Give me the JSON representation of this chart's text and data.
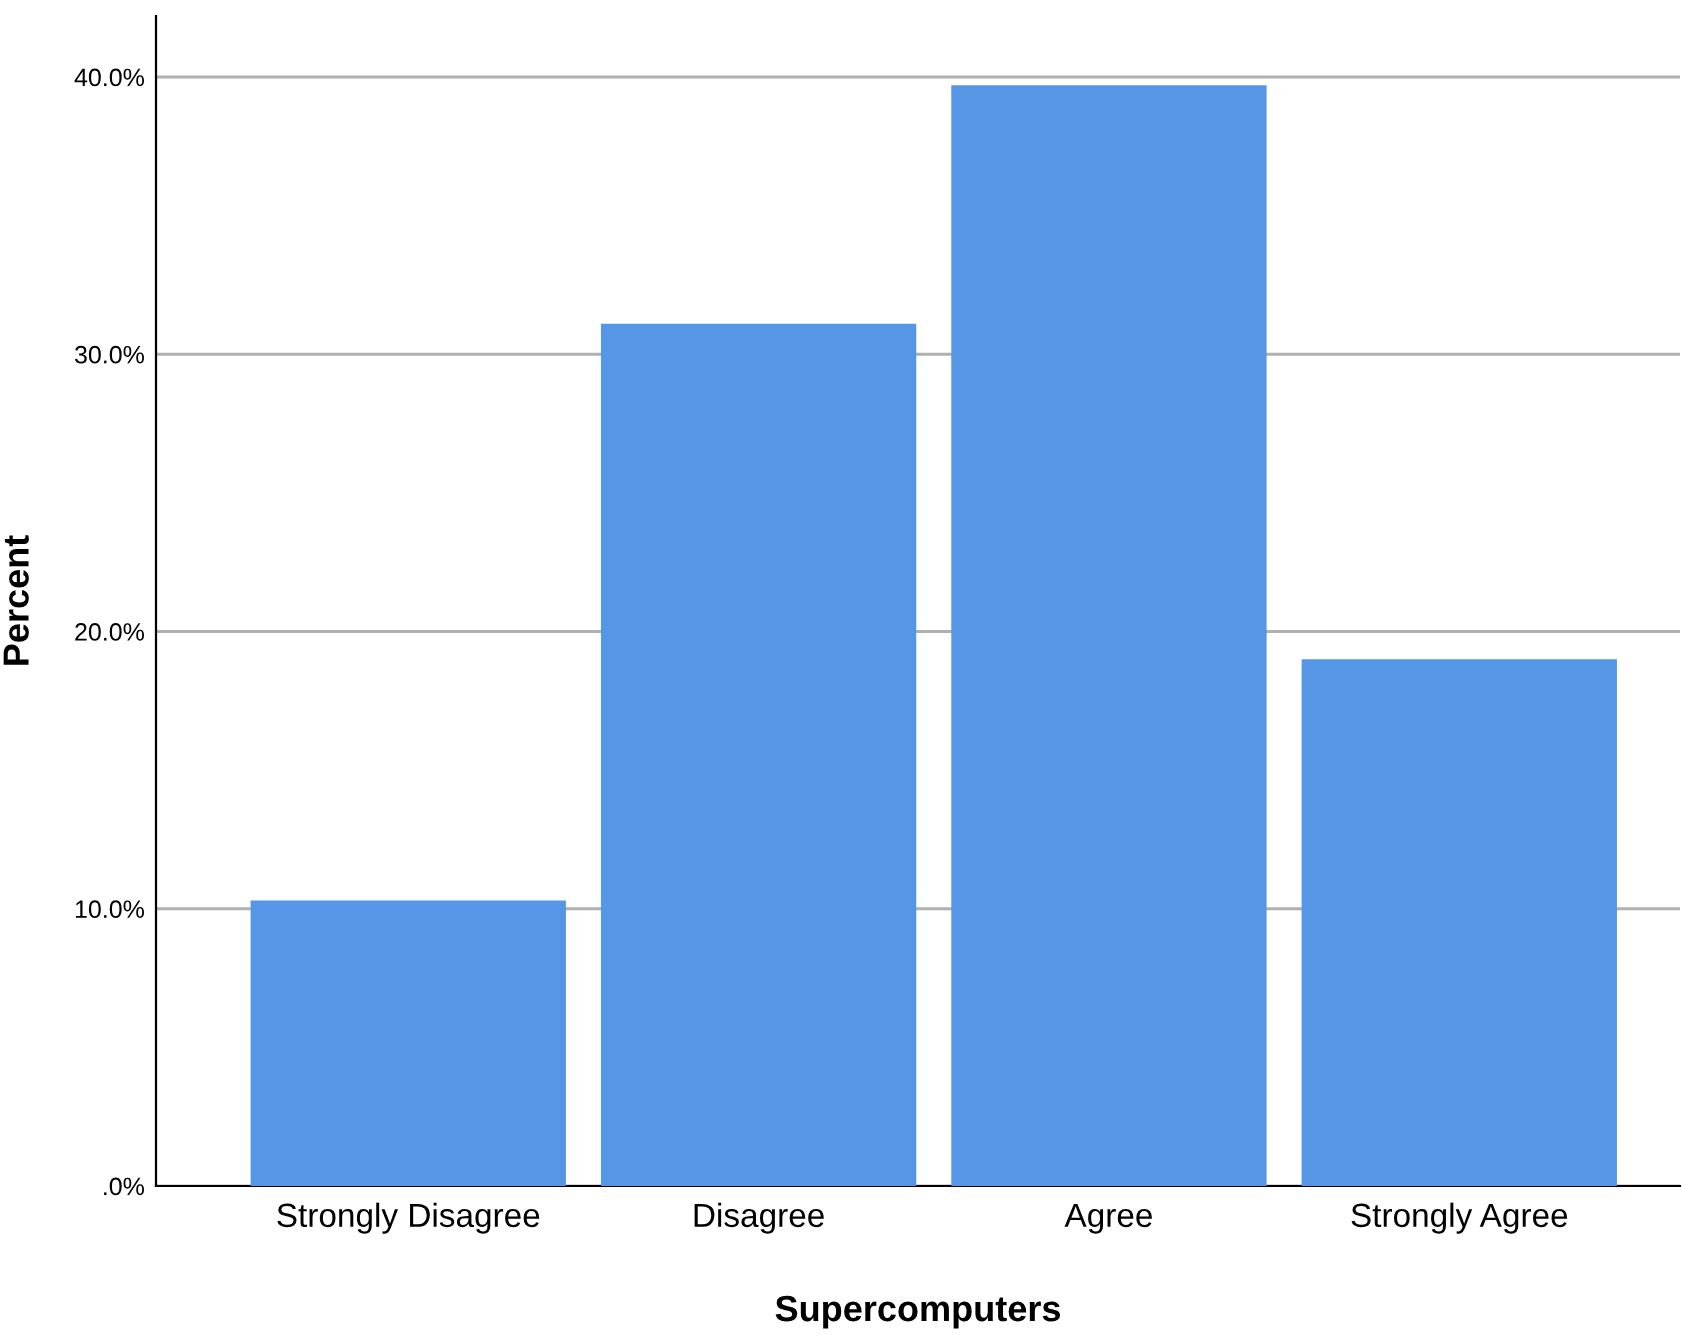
{
  "chart_data": {
    "type": "bar",
    "xlabel": "Supercomputers",
    "ylabel": "Percent",
    "categories": [
      "Strongly Disagree",
      "Disagree",
      "Agree",
      "Strongly Agree"
    ],
    "values": [
      10.3,
      31.1,
      39.7,
      19.0
    ],
    "color": "#5596e6",
    "ylim": [
      0,
      42.2
    ],
    "yticks": [
      {
        "value": 0,
        "label": ".0%"
      },
      {
        "value": 10,
        "label": "10.0%"
      },
      {
        "value": 20,
        "label": "20.0%"
      },
      {
        "value": 30,
        "label": "30.0%"
      },
      {
        "value": 40,
        "label": "40.0%"
      }
    ],
    "grid": "y",
    "legend": false
  }
}
